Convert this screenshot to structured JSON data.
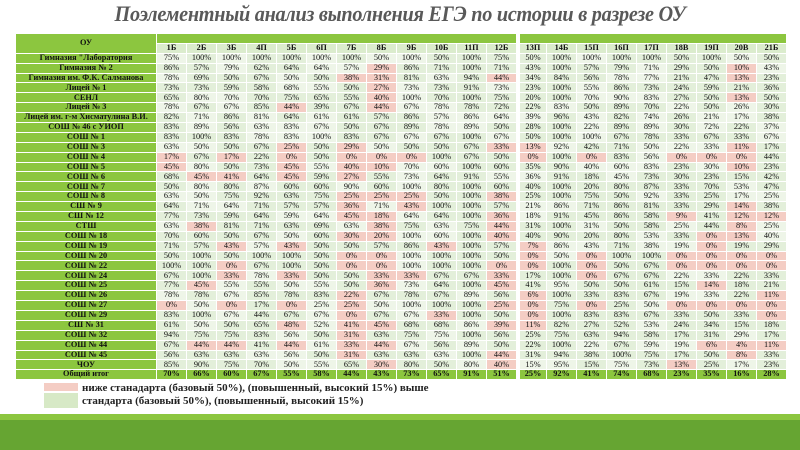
{
  "title": "Поэлементный анализ выполнения ЕГЭ по истории в разрезе ОУ",
  "table": {
    "corner_label": "ОУ",
    "columns": [
      "1Б",
      "2Б",
      "3Б",
      "4П",
      "5Б",
      "6П",
      "7Б",
      "8Б",
      "9Б",
      "10Б",
      "11П",
      "12Б",
      "13П",
      "14Б",
      "15П",
      "16П",
      "17П",
      "18В",
      "19П",
      "20В",
      "21Б"
    ],
    "low_thresholds": [
      50,
      50,
      50,
      15,
      50,
      15,
      50,
      50,
      50,
      50,
      50,
      50,
      15,
      15,
      15,
      15,
      15,
      15,
      15,
      15,
      15
    ],
    "rows": [
      {
        "name": "Гимназия \"Лаборатория",
        "values": [
          75,
          100,
          100,
          100,
          100,
          100,
          100,
          50,
          100,
          50,
          100,
          75,
          50,
          100,
          100,
          100,
          100,
          50,
          100,
          50,
          50
        ]
      },
      {
        "name": "Гимназия № 2",
        "values": [
          86,
          57,
          79,
          62,
          64,
          64,
          57,
          29,
          86,
          71,
          100,
          71,
          43,
          100,
          57,
          79,
          71,
          29,
          50,
          10,
          43
        ]
      },
      {
        "name": "Гимназия им. Ф.К. Салманова",
        "values": [
          78,
          69,
          50,
          67,
          50,
          50,
          38,
          31,
          81,
          63,
          94,
          44,
          34,
          84,
          56,
          78,
          77,
          21,
          47,
          13,
          23
        ]
      },
      {
        "name": "Лицей № 1",
        "values": [
          73,
          73,
          59,
          58,
          68,
          55,
          50,
          27,
          73,
          73,
          91,
          73,
          23,
          100,
          55,
          86,
          73,
          24,
          59,
          21,
          36
        ]
      },
      {
        "name": "СЕНЛ",
        "values": [
          65,
          80,
          70,
          70,
          75,
          65,
          55,
          40,
          100,
          70,
          100,
          75,
          20,
          100,
          70,
          90,
          83,
          27,
          50,
          13,
          50
        ]
      },
      {
        "name": "Лицей № 3",
        "values": [
          78,
          67,
          67,
          85,
          44,
          39,
          67,
          44,
          67,
          78,
          78,
          72,
          22,
          83,
          50,
          89,
          70,
          22,
          50,
          26,
          30
        ]
      },
      {
        "name": "Лицей им. г-м Хисматулина В.И.",
        "values": [
          82,
          71,
          86,
          81,
          64,
          61,
          61,
          57,
          86,
          57,
          86,
          64,
          39,
          96,
          43,
          82,
          74,
          26,
          21,
          17,
          38
        ]
      },
      {
        "name": "СОШ № 46 с УИОП",
        "values": [
          83,
          89,
          56,
          63,
          83,
          67,
          50,
          67,
          89,
          78,
          89,
          50,
          28,
          100,
          22,
          89,
          89,
          30,
          72,
          22,
          37
        ]
      },
      {
        "name": "СОШ № 1",
        "values": [
          83,
          100,
          83,
          78,
          83,
          100,
          83,
          67,
          67,
          67,
          100,
          67,
          50,
          100,
          100,
          67,
          78,
          33,
          67,
          33,
          67
        ]
      },
      {
        "name": "СОШ № 3",
        "values": [
          63,
          50,
          50,
          67,
          25,
          50,
          29,
          50,
          50,
          50,
          67,
          33,
          13,
          92,
          42,
          71,
          50,
          22,
          33,
          11,
          17
        ]
      },
      {
        "name": "СОШ № 4",
        "values": [
          17,
          67,
          17,
          22,
          0,
          50,
          0,
          0,
          0,
          100,
          67,
          50,
          0,
          100,
          0,
          83,
          56,
          0,
          0,
          0,
          44
        ]
      },
      {
        "name": "СОШ № 5",
        "values": [
          45,
          80,
          50,
          73,
          45,
          55,
          40,
          10,
          70,
          60,
          100,
          60,
          35,
          90,
          40,
          60,
          83,
          23,
          30,
          10,
          23
        ]
      },
      {
        "name": "СОШ № 6",
        "values": [
          68,
          45,
          41,
          64,
          45,
          59,
          27,
          55,
          73,
          64,
          91,
          55,
          36,
          91,
          18,
          45,
          73,
          30,
          23,
          15,
          42
        ]
      },
      {
        "name": "СОШ № 7",
        "values": [
          50,
          80,
          80,
          87,
          60,
          60,
          90,
          60,
          100,
          80,
          100,
          60,
          40,
          100,
          20,
          80,
          87,
          33,
          70,
          53,
          47
        ]
      },
      {
        "name": "СОШ № 8",
        "values": [
          63,
          50,
          75,
          92,
          63,
          75,
          25,
          25,
          25,
          50,
          100,
          38,
          25,
          100,
          75,
          50,
          92,
          33,
          25,
          17,
          25
        ]
      },
      {
        "name": "СШ № 9",
        "values": [
          64,
          71,
          64,
          71,
          57,
          57,
          36,
          71,
          43,
          100,
          100,
          57,
          21,
          86,
          71,
          86,
          81,
          33,
          29,
          14,
          38
        ]
      },
      {
        "name": "СШ № 12",
        "values": [
          77,
          73,
          59,
          64,
          59,
          64,
          45,
          18,
          64,
          64,
          100,
          36,
          18,
          91,
          45,
          86,
          58,
          9,
          41,
          12,
          12
        ]
      },
      {
        "name": "СТШ",
        "values": [
          63,
          38,
          81,
          71,
          63,
          69,
          63,
          38,
          75,
          63,
          75,
          44,
          31,
          100,
          31,
          50,
          58,
          25,
          44,
          8,
          25
        ]
      },
      {
        "name": "СОШ № 18",
        "values": [
          70,
          60,
          50,
          67,
          50,
          60,
          30,
          20,
          100,
          60,
          100,
          40,
          40,
          90,
          20,
          80,
          53,
          33,
          0,
          13,
          40
        ]
      },
      {
        "name": "СОШ № 19",
        "values": [
          71,
          57,
          43,
          57,
          43,
          50,
          50,
          57,
          86,
          43,
          100,
          57,
          7,
          86,
          43,
          71,
          38,
          19,
          0,
          19,
          29
        ]
      },
      {
        "name": "СОШ № 20",
        "values": [
          50,
          100,
          50,
          100,
          100,
          50,
          0,
          0,
          100,
          100,
          100,
          50,
          0,
          50,
          0,
          100,
          100,
          0,
          0,
          0,
          0
        ]
      },
      {
        "name": "СОШ № 22",
        "values": [
          100,
          100,
          0,
          67,
          100,
          50,
          0,
          0,
          100,
          100,
          100,
          0,
          0,
          100,
          0,
          50,
          67,
          0,
          0,
          0,
          0
        ]
      },
      {
        "name": "СОШ № 24",
        "values": [
          67,
          100,
          33,
          78,
          33,
          50,
          50,
          33,
          33,
          67,
          67,
          33,
          17,
          100,
          0,
          67,
          67,
          22,
          33,
          22,
          33
        ]
      },
      {
        "name": "СОШ № 25",
        "values": [
          77,
          45,
          55,
          55,
          50,
          55,
          50,
          36,
          73,
          64,
          100,
          45,
          41,
          95,
          50,
          50,
          61,
          15,
          14,
          18,
          21
        ]
      },
      {
        "name": "СОШ № 26",
        "values": [
          78,
          78,
          67,
          85,
          78,
          83,
          22,
          67,
          78,
          67,
          89,
          56,
          6,
          100,
          33,
          83,
          67,
          19,
          33,
          22,
          11
        ]
      },
      {
        "name": "СОШ № 27",
        "values": [
          0,
          50,
          0,
          17,
          0,
          25,
          25,
          50,
          100,
          100,
          100,
          25,
          0,
          75,
          0,
          25,
          50,
          0,
          0,
          0,
          0
        ]
      },
      {
        "name": "СОШ № 29",
        "values": [
          83,
          100,
          67,
          44,
          67,
          67,
          0,
          67,
          67,
          33,
          100,
          50,
          0,
          100,
          83,
          83,
          67,
          33,
          50,
          33,
          0
        ]
      },
      {
        "name": "СШ № 31",
        "values": [
          61,
          50,
          50,
          65,
          48,
          52,
          41,
          45,
          68,
          68,
          86,
          39,
          11,
          82,
          27,
          52,
          53,
          24,
          34,
          15,
          18
        ]
      },
      {
        "name": "СОШ № 32",
        "values": [
          94,
          75,
          75,
          83,
          56,
          50,
          31,
          63,
          75,
          75,
          100,
          56,
          25,
          75,
          63,
          94,
          58,
          17,
          31,
          29,
          17
        ]
      },
      {
        "name": "СОШ № 44",
        "values": [
          67,
          44,
          44,
          41,
          44,
          61,
          33,
          44,
          67,
          56,
          89,
          50,
          22,
          100,
          22,
          67,
          59,
          19,
          6,
          4,
          11
        ]
      },
      {
        "name": "СОШ № 45",
        "values": [
          56,
          63,
          63,
          63,
          56,
          50,
          31,
          63,
          63,
          63,
          100,
          44,
          31,
          94,
          38,
          100,
          75,
          17,
          50,
          8,
          33
        ]
      },
      {
        "name": "ЧОУ",
        "values": [
          85,
          90,
          75,
          70,
          50,
          55,
          65,
          30,
          80,
          50,
          80,
          40,
          15,
          95,
          15,
          75,
          73,
          13,
          25,
          17,
          23
        ]
      }
    ],
    "total": {
      "name": "Общий итог",
      "values": [
        70,
        66,
        60,
        67,
        55,
        58,
        44,
        43,
        73,
        65,
        91,
        51,
        25,
        92,
        41,
        74,
        68,
        23,
        35,
        16,
        28
      ]
    }
  },
  "legend": {
    "below_label": "ниже станадарта (базовый 50%), (повышенный, высокий 15%) выше",
    "above_label": "стандарта (базовый 50%), (повышенный, высокий 15%)",
    "below_color": "#f4cdc4",
    "above_color": "#d7e9c6"
  },
  "colors": {
    "header_green": "#8cc63f",
    "footer_green": "#66a532",
    "title": "#595959"
  }
}
